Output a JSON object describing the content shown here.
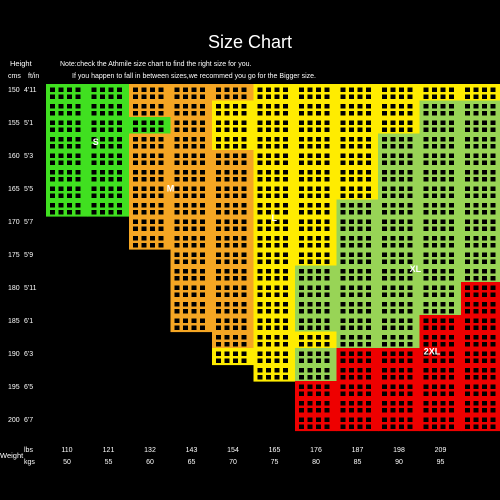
{
  "chart_data": {
    "type": "heatmap",
    "title": "Size Chart",
    "notes": [
      "Note:check the Athmile size chart to find the right size for you.",
      "If you happen to fall in between sizes,we recommed you go for the Bigger size."
    ],
    "height_axis": {
      "label": "Height",
      "units": [
        "cms",
        "ft/in"
      ],
      "cm": [
        "150",
        "155",
        "160",
        "165",
        "170",
        "175",
        "180",
        "185",
        "190",
        "195",
        "200"
      ],
      "ft_in": [
        "4'11",
        "5'1",
        "5'3",
        "5'5",
        "5'7",
        "5'9",
        "5'11",
        "6'1",
        "6'3",
        "6'5",
        "6'7"
      ]
    },
    "weight_axis": {
      "label": "Weight",
      "units": [
        "lbs",
        "kgs"
      ],
      "lbs": [
        "110",
        "121",
        "132",
        "143",
        "154",
        "165",
        "176",
        "187",
        "198",
        "209"
      ],
      "kgs": [
        "50",
        "55",
        "60",
        "65",
        "70",
        "75",
        "80",
        "85",
        "90",
        "95"
      ]
    },
    "sizes": [
      {
        "name": "S",
        "color": "#40e020"
      },
      {
        "name": "M",
        "color": "#f5a623"
      },
      {
        "name": "L",
        "color": "#ffec00"
      },
      {
        "name": "XL",
        "color": "#98d456"
      },
      {
        "name": "2XL",
        "color": "#ee0000"
      }
    ],
    "grid_cols": [
      "46–50kg",
      "50–55",
      "55–60",
      "60–65",
      "65–70",
      "70–75",
      "75–80",
      "80–85",
      "85–90",
      "90–95",
      "95–100"
    ],
    "grid_rows": [
      "150–152.5cm",
      "152.5–155",
      "155–157.5",
      "157.5–160",
      "160–162.5",
      "162.5–165",
      "165–167.5",
      "167.5–170",
      "170–172.5",
      "172.5–175",
      "175–177.5",
      "177.5–180",
      "180–182.5",
      "182.5–185",
      "185–187.5",
      "187.5–190",
      "190–192.5",
      "192.5–195",
      "195–197.5",
      "197.5–200",
      "200–202.5"
    ],
    "cells": [
      "SSMMMLLLLLL",
      "SSMMLLLLLXX",
      "SSSMLLLLLXX",
      "SSMMLLLLXXX",
      "SSMMMLLLXXX",
      "SSMMMLLLXXX",
      "SSMMMLLLXXX",
      "SSMMMLLXXXX",
      "..MMMLLXXXX",
      "..MMMLLXXXX",
      "...MMLLXXXX",
      "...MMLXXXXX",
      "...MMLXXXX2",
      "...MMLXXXX2",
      "...MMLXXX22",
      "....MLLXX22",
      "....LLX2222",
      ".....LX2222",
      "......22222",
      "......22222",
      "......22222"
    ]
  }
}
